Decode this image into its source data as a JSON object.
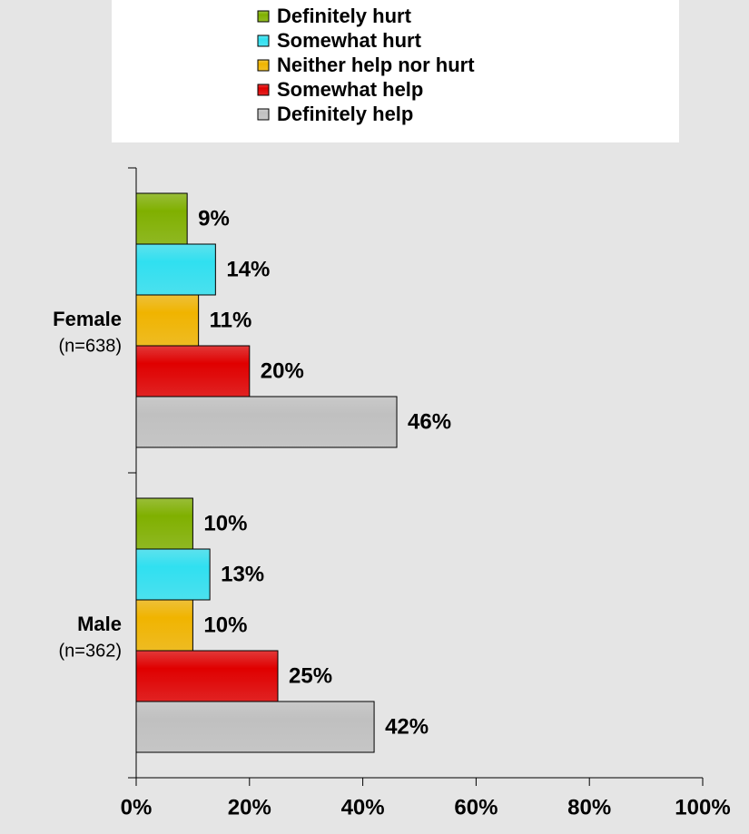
{
  "chart_data": {
    "type": "bar",
    "orientation": "horizontal",
    "categories": [
      "Female",
      "Male"
    ],
    "category_notes": [
      "(n=638)",
      "(n=362)"
    ],
    "series": [
      {
        "name": "Definitely hurt",
        "color": "#80b000",
        "values": [
          9,
          10
        ],
        "value_labels": [
          "9%",
          "10%"
        ]
      },
      {
        "name": "Somewhat hurt",
        "color": "#30e0f0",
        "values": [
          14,
          13
        ],
        "value_labels": [
          "14%",
          "13%"
        ]
      },
      {
        "name": "Neither help nor hurt",
        "color": "#f0b400",
        "values": [
          11,
          10
        ],
        "value_labels": [
          "11%",
          "10%"
        ]
      },
      {
        "name": "Somewhat help",
        "color": "#e00000",
        "values": [
          20,
          25
        ],
        "value_labels": [
          "20%",
          "25%"
        ]
      },
      {
        "name": "Definitely help",
        "color": "#c0c0c0",
        "values": [
          46,
          42
        ],
        "value_labels": [
          "46%",
          "42%"
        ]
      }
    ],
    "xlim": [
      0,
      100
    ],
    "xticks": [
      {
        "value": 0,
        "label": "0%"
      },
      {
        "value": 20,
        "label": "20%"
      },
      {
        "value": 40,
        "label": "40%"
      },
      {
        "value": 60,
        "label": "60%"
      },
      {
        "value": 80,
        "label": "80%"
      },
      {
        "value": 100,
        "label": "100%"
      }
    ],
    "legend": "top"
  }
}
